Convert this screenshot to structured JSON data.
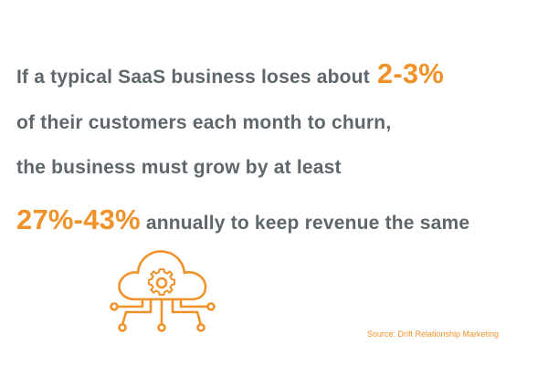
{
  "line1": {
    "text": "If a typical SaaS business loses about",
    "highlight": "2-3%"
  },
  "line2": {
    "text": "of their customers each month to churn,"
  },
  "line3": {
    "text": "the business must grow by at least"
  },
  "line4": {
    "highlight": "27%-43%",
    "text": "annually to keep revenue the same"
  },
  "source": "Source: Drift Relationship Marketing",
  "icon": "cloud-gear-network-icon",
  "colors": {
    "text": "#5e676c",
    "accent": "#f0922a",
    "background": "#ffffff"
  }
}
